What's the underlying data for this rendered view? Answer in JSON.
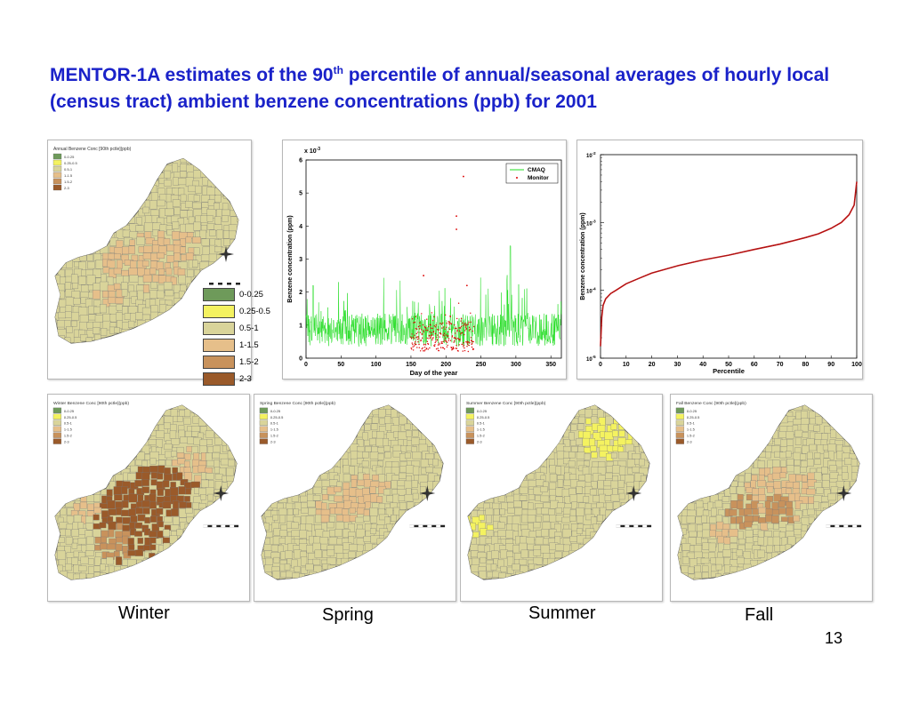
{
  "slide": {
    "title_part1": "MENTOR-1A estimates of the 90",
    "title_sup": "th",
    "title_part2": " percentile of annual/seasonal averages of hourly local (census tract) ambient benzene concentrations (ppb) for 2001",
    "page_number": "13"
  },
  "legend": {
    "items": [
      {
        "label": "0-0.25",
        "color": "#6e9a5a"
      },
      {
        "label": "0.25-0.5",
        "color": "#f4f260"
      },
      {
        "label": "0.5-1",
        "color": "#d9d49a"
      },
      {
        "label": "1-1.5",
        "color": "#e6bf8a"
      },
      {
        "label": "1.5-2",
        "color": "#c8925c"
      },
      {
        "label": "2-3",
        "color": "#9a5a2a"
      }
    ]
  },
  "maps": {
    "annual": {
      "title": "Annual Benzene Conc [90th pctle](ppb)"
    },
    "winter": {
      "title": "Winter Benzene Conc [90th pctle](ppb)",
      "label": "Winter"
    },
    "spring": {
      "title": "Spring Benzene Conc [90th pctle](ppb)",
      "label": "Spring"
    },
    "summer": {
      "title": "Summer Benzene Conc [90th pctle](ppb)",
      "label": "Summer"
    },
    "fall": {
      "title": "Fall Benzene Conc [90th pctle](ppb)",
      "label": "Fall"
    }
  },
  "chart_data": [
    {
      "type": "line",
      "title": "",
      "xlabel": "Day of the year",
      "ylabel": "Benzene concentration (ppm)",
      "y_multiplier_label": "x 10",
      "y_multiplier_exp": "-3",
      "xlim": [
        0,
        365
      ],
      "ylim": [
        0,
        6
      ],
      "xticks": [
        0,
        50,
        100,
        150,
        200,
        250,
        300,
        350
      ],
      "yticks": [
        0,
        1,
        2,
        3,
        4,
        5,
        6
      ],
      "legend_position": "top-right",
      "series": [
        {
          "name": "CMAQ",
          "color": "#22dd22",
          "kind": "line"
        },
        {
          "name": "Monitor",
          "color": "#dd0000",
          "kind": "scatter",
          "x_range": [
            150,
            240
          ],
          "outliers": [
            [
              225,
              5.5
            ],
            [
              215,
              4.3
            ],
            [
              215,
              3.9
            ],
            [
              168,
              2.5
            ],
            [
              230,
              2.2
            ]
          ]
        }
      ]
    },
    {
      "type": "line",
      "title": "",
      "xlabel": "Percentile",
      "ylabel": "Benzene concentration (ppm)",
      "y_scale": "log",
      "xlim": [
        0,
        100
      ],
      "ylim": [
        1e-05,
        0.01
      ],
      "xticks": [
        0,
        10,
        20,
        30,
        40,
        50,
        60,
        70,
        80,
        90,
        100
      ],
      "ytick_base": "10",
      "ytick_exps": [
        "-5",
        "-4",
        "-3",
        "-2"
      ],
      "series": [
        {
          "name": "",
          "color": "#cc1111",
          "x": [
            0,
            0.5,
            1,
            2,
            4,
            6,
            10,
            15,
            20,
            30,
            40,
            50,
            60,
            70,
            80,
            85,
            90,
            94,
            97,
            99,
            100
          ],
          "y": [
            1.5e-05,
            4e-05,
            6e-05,
            7.5e-05,
            9e-05,
            0.0001,
            0.000125,
            0.00015,
            0.00018,
            0.00023,
            0.00028,
            0.00033,
            0.0004,
            0.00048,
            0.0006,
            0.00068,
            0.00082,
            0.001,
            0.0013,
            0.0018,
            0.004
          ]
        }
      ]
    }
  ]
}
